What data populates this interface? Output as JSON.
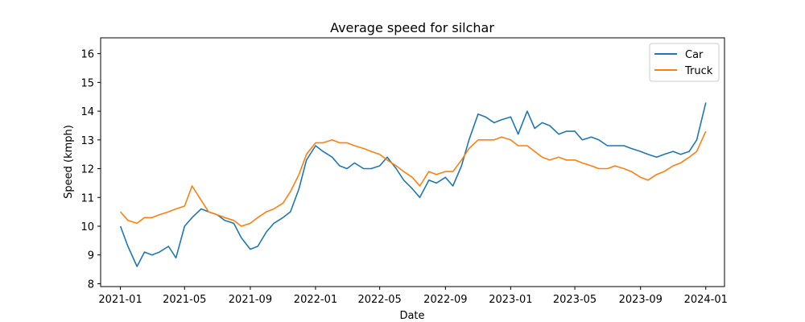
{
  "chart_data": {
    "type": "line",
    "title": "Average speed for silchar",
    "xlabel": "Date",
    "ylabel": "Speed (kmph)",
    "xlim": [
      "2020-11-25",
      "2024-02-05"
    ],
    "ylim": [
      7.9,
      16.55
    ],
    "x_ticks": [
      "2021-01",
      "2021-05",
      "2021-09",
      "2022-01",
      "2022-05",
      "2022-09",
      "2023-01",
      "2023-05",
      "2023-09",
      "2024-01"
    ],
    "y_ticks": [
      8,
      9,
      10,
      11,
      12,
      13,
      14,
      15,
      16
    ],
    "grid": false,
    "legend_position": "top-right",
    "x": [
      "2021-01-01",
      "2021-01-15",
      "2021-02-01",
      "2021-02-15",
      "2021-03-01",
      "2021-03-15",
      "2021-04-01",
      "2021-04-15",
      "2021-05-01",
      "2021-05-15",
      "2021-06-01",
      "2021-06-15",
      "2021-07-01",
      "2021-07-15",
      "2021-08-01",
      "2021-08-15",
      "2021-09-01",
      "2021-09-15",
      "2021-10-01",
      "2021-10-15",
      "2021-11-01",
      "2021-11-15",
      "2021-12-01",
      "2021-12-15",
      "2022-01-01",
      "2022-01-15",
      "2022-02-01",
      "2022-02-15",
      "2022-03-01",
      "2022-03-15",
      "2022-04-01",
      "2022-04-15",
      "2022-05-01",
      "2022-05-15",
      "2022-06-01",
      "2022-06-15",
      "2022-07-01",
      "2022-07-15",
      "2022-08-01",
      "2022-08-15",
      "2022-09-01",
      "2022-09-15",
      "2022-10-01",
      "2022-10-15",
      "2022-11-01",
      "2022-11-15",
      "2022-12-01",
      "2022-12-15",
      "2023-01-01",
      "2023-01-15",
      "2023-02-01",
      "2023-02-15",
      "2023-03-01",
      "2023-03-15",
      "2023-04-01",
      "2023-04-15",
      "2023-05-01",
      "2023-05-15",
      "2023-06-01",
      "2023-06-15",
      "2023-07-01",
      "2023-07-15",
      "2023-08-01",
      "2023-08-15",
      "2023-09-01",
      "2023-09-15",
      "2023-10-01",
      "2023-10-15",
      "2023-11-01",
      "2023-11-15",
      "2023-12-01",
      "2023-12-15",
      "2024-01-01"
    ],
    "series": [
      {
        "name": "Car",
        "color": "#1f77b4",
        "values": [
          10.0,
          9.3,
          8.6,
          9.1,
          9.0,
          9.1,
          9.3,
          8.9,
          10.0,
          10.3,
          10.6,
          10.5,
          10.4,
          10.2,
          10.1,
          9.6,
          9.2,
          9.3,
          9.8,
          10.1,
          10.3,
          10.5,
          11.3,
          12.3,
          12.8,
          12.6,
          12.4,
          12.1,
          12.0,
          12.2,
          12.0,
          12.0,
          12.1,
          12.4,
          12.0,
          11.6,
          11.3,
          11.0,
          11.6,
          11.5,
          11.7,
          11.4,
          12.1,
          13.0,
          13.9,
          13.8,
          13.6,
          13.7,
          13.8,
          13.2,
          14.0,
          13.4,
          13.6,
          13.5,
          13.2,
          13.3,
          13.3,
          13.0,
          13.1,
          13.0,
          12.8,
          12.8,
          12.8,
          12.7,
          12.6,
          12.5,
          12.4,
          12.5,
          12.6,
          12.5,
          12.6,
          13.0,
          14.3
        ]
      },
      {
        "name": "Truck",
        "color": "#ff7f0e",
        "values": [
          10.5,
          10.2,
          10.1,
          10.3,
          10.3,
          10.4,
          10.5,
          10.6,
          10.7,
          11.4,
          10.9,
          10.5,
          10.4,
          10.3,
          10.2,
          10.0,
          10.1,
          10.3,
          10.5,
          10.6,
          10.8,
          11.2,
          11.8,
          12.5,
          12.9,
          12.9,
          13.0,
          12.9,
          12.9,
          12.8,
          12.7,
          12.6,
          12.5,
          12.3,
          12.1,
          11.9,
          11.7,
          11.4,
          11.9,
          11.8,
          11.9,
          11.9,
          12.3,
          12.7,
          13.0,
          13.0,
          13.0,
          13.1,
          13.0,
          12.8,
          12.8,
          12.6,
          12.4,
          12.3,
          12.4,
          12.3,
          12.3,
          12.2,
          12.1,
          12.0,
          12.0,
          12.1,
          12.0,
          11.9,
          11.7,
          11.6,
          11.8,
          11.9,
          12.1,
          12.2,
          12.4,
          12.6,
          13.3
        ]
      }
    ]
  }
}
